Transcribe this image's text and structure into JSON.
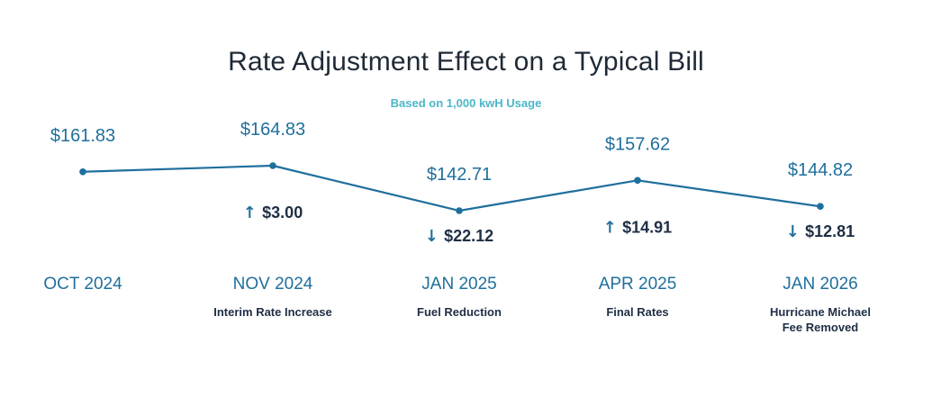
{
  "chart_data": {
    "type": "line",
    "title": "Rate Adjustment Effect on a Typical Bill",
    "subtitle": "Based on 1,000 kwH Usage",
    "categories": [
      "OCT 2024",
      "NOV 2024",
      "JAN 2025",
      "APR 2025",
      "JAN 2026"
    ],
    "values": [
      161.83,
      164.83,
      142.71,
      157.62,
      144.82
    ],
    "value_labels": [
      "$161.83",
      "$164.83",
      "$142.71",
      "$157.62",
      "$144.82"
    ],
    "changes": [
      null,
      {
        "direction": "up",
        "arrow": "↑",
        "label": "$3.00"
      },
      {
        "direction": "down",
        "arrow": "↓",
        "label": "$22.12"
      },
      {
        "direction": "up",
        "arrow": "↑",
        "label": "$14.91"
      },
      {
        "direction": "down",
        "arrow": "↓",
        "label": "$12.81"
      }
    ],
    "descriptions": [
      [],
      [
        "Interim Rate Increase"
      ],
      [
        "Fuel Reduction"
      ],
      [
        "Final Rates"
      ],
      [
        "Hurricane Michael",
        "Fee Removed"
      ]
    ],
    "colors": {
      "line": "#1f6f9c",
      "value_text": "#1f6f9c",
      "change_text": "#1f2f45",
      "subtitle": "#4bb6c8"
    },
    "grid": false,
    "legend": "none"
  }
}
